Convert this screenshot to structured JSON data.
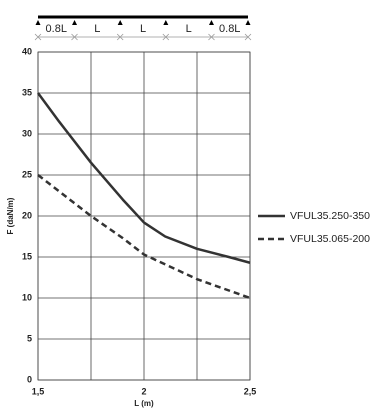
{
  "beam_diagram": {
    "spans": [
      "0.8L",
      "L",
      "L",
      "L",
      "0.8L"
    ],
    "proportions": [
      0.8,
      1,
      1,
      1,
      0.8
    ]
  },
  "chart_data": {
    "type": "line",
    "x_label": "L (m)",
    "y_label": "F (daN/m)",
    "x": [
      1.5,
      1.6,
      1.75,
      1.9,
      2.0,
      2.1,
      2.25,
      2.4,
      2.5
    ],
    "series": [
      {
        "name": "VFUL35.250-350",
        "color": "#333333",
        "dash": false,
        "values": [
          35,
          31.5,
          26.5,
          22,
          19.2,
          17.5,
          16,
          15,
          14.3
        ]
      },
      {
        "name": "VFUL35.065-200",
        "color": "#333333",
        "dash": true,
        "values": [
          25,
          23,
          20,
          17.3,
          15.3,
          null,
          12.3,
          null,
          10
        ]
      }
    ],
    "xlim": [
      1.5,
      2.5
    ],
    "xticks": [
      {
        "value": 1.5,
        "label": "1,5"
      },
      2,
      {
        "value": 2.5,
        "label": "2,5"
      }
    ],
    "x_grid_lines": [
      1.75,
      2.25
    ],
    "ylim": [
      0,
      40
    ],
    "yticks": [
      0,
      5,
      10,
      15,
      20,
      25,
      30,
      35,
      40
    ],
    "grid": true
  }
}
